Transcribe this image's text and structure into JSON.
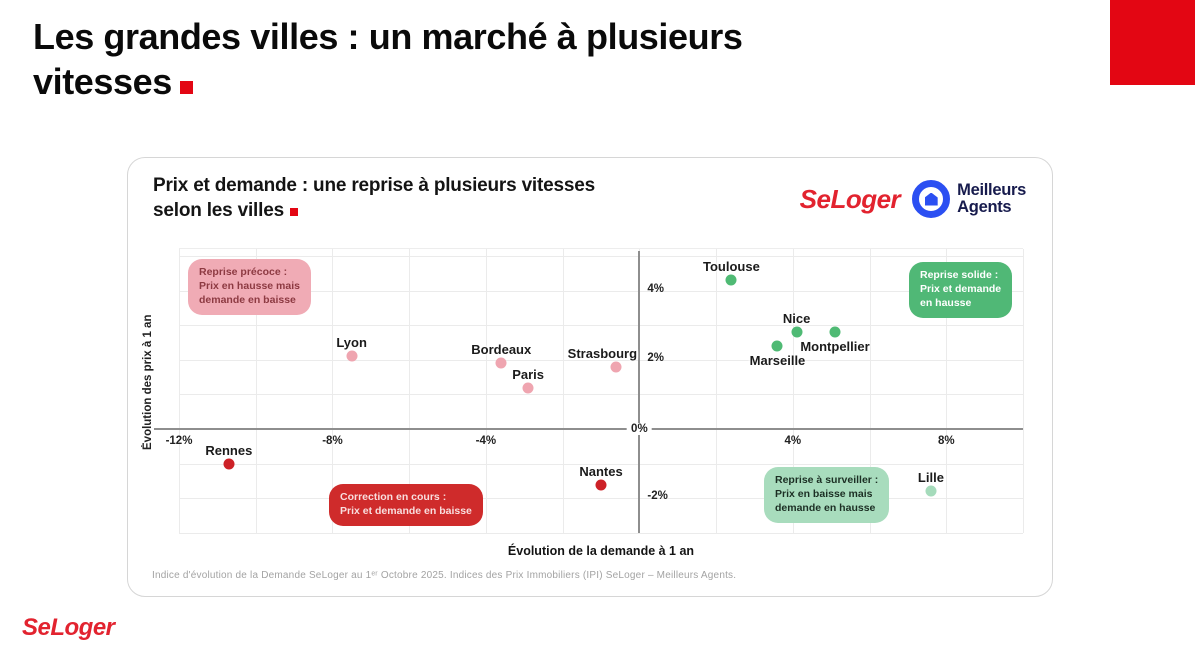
{
  "page": {
    "title_line1": "Les grandes villes : un marché à plusieurs",
    "title_line2": "vitesses",
    "accent_color": "#e30613"
  },
  "footer": {
    "logo": "SeLoger"
  },
  "card": {
    "title_line1": "Prix et demande : une reprise à plusieurs vitesses",
    "title_line2": "selon les villes",
    "brand_seloger": "SeLoger",
    "brand_ma_line1": "Meilleurs",
    "brand_ma_line2": "Agents",
    "source_note": "Indice d'évolution de la Demande SeLoger au 1ᵉʳ Octobre 2025. Indices des Prix Immobiliers (IPI) SeLoger – Meilleurs Agents."
  },
  "chart_data": {
    "type": "scatter",
    "title": "Prix et demande : une reprise à plusieurs vitesses selon les villes",
    "xlabel": "Évolution de la demande à 1 an",
    "ylabel": "Évolution des prix à 1 an",
    "x_unit": "%",
    "y_unit": "%",
    "xlim": [
      -12,
      10
    ],
    "ylim": [
      -3,
      5.2
    ],
    "x_grid_step": 2,
    "y_grid_step": 1,
    "grid": "on",
    "x_ticks": [
      {
        "value": -12,
        "label": "-12%"
      },
      {
        "value": -8,
        "label": "-8%"
      },
      {
        "value": -4,
        "label": "-4%"
      },
      {
        "value": 4,
        "label": "4%"
      },
      {
        "value": 8,
        "label": "8%"
      }
    ],
    "y_ticks": [
      {
        "value": 4,
        "label": "4%"
      },
      {
        "value": 2,
        "label": "2%"
      },
      {
        "value": -2,
        "label": "-2%"
      }
    ],
    "origin_label": "0%",
    "group_colors": {
      "price_up_demand_down": "#efa5b0",
      "both_up": "#4fba74",
      "both_down": "#cd2127",
      "price_down_demand_up": "#a5dbbb"
    },
    "points": [
      {
        "city": "Lyon",
        "x": -7.5,
        "y": 2.1,
        "group": "price_up_demand_down",
        "label_pos": "above"
      },
      {
        "city": "Bordeaux",
        "x": -3.6,
        "y": 1.9,
        "group": "price_up_demand_down",
        "label_pos": "above"
      },
      {
        "city": "Paris",
        "x": -2.9,
        "y": 1.2,
        "group": "price_up_demand_down",
        "label_pos": "above"
      },
      {
        "city": "Strasbourg",
        "x": -0.6,
        "y": 1.8,
        "group": "price_up_demand_down",
        "label_pos": "above",
        "label_dx": -14
      },
      {
        "city": "Toulouse",
        "x": 2.4,
        "y": 4.3,
        "group": "both_up",
        "label_pos": "above"
      },
      {
        "city": "Nice",
        "x": 4.1,
        "y": 2.8,
        "group": "both_up",
        "label_pos": "above"
      },
      {
        "city": "Montpellier",
        "x": 5.1,
        "y": 2.8,
        "group": "both_up",
        "label_pos": "below"
      },
      {
        "city": "Marseille",
        "x": 3.6,
        "y": 2.4,
        "group": "both_up",
        "label_pos": "below"
      },
      {
        "city": "Rennes",
        "x": -10.7,
        "y": -1.0,
        "group": "both_down",
        "label_pos": "above"
      },
      {
        "city": "Nantes",
        "x": -1.0,
        "y": -1.6,
        "group": "both_down",
        "label_pos": "above"
      },
      {
        "city": "Lille",
        "x": 7.6,
        "y": -1.8,
        "group": "price_down_demand_up",
        "label_pos": "above"
      }
    ],
    "annotations": [
      {
        "quadrant": "top-left",
        "lines": [
          "Reprise précoce :",
          "Prix en hausse mais",
          "demande en baisse"
        ],
        "bg": "#f0abb5",
        "fg": "#8d3a42"
      },
      {
        "quadrant": "top-right",
        "lines": [
          "Reprise solide :",
          "Prix et demande",
          "en hausse"
        ],
        "bg": "#50b876",
        "fg": "#ffffff"
      },
      {
        "quadrant": "bottom-left",
        "lines": [
          "Correction en cours :",
          "Prix et demande en baisse"
        ],
        "bg": "#cf2b2b",
        "fg": "#f8dede"
      },
      {
        "quadrant": "bottom-right",
        "lines": [
          "Reprise à surveiller :",
          "Prix en baisse mais",
          "demande en hausse"
        ],
        "bg": "#a8dcbd",
        "fg": "#1c2f24"
      }
    ]
  }
}
